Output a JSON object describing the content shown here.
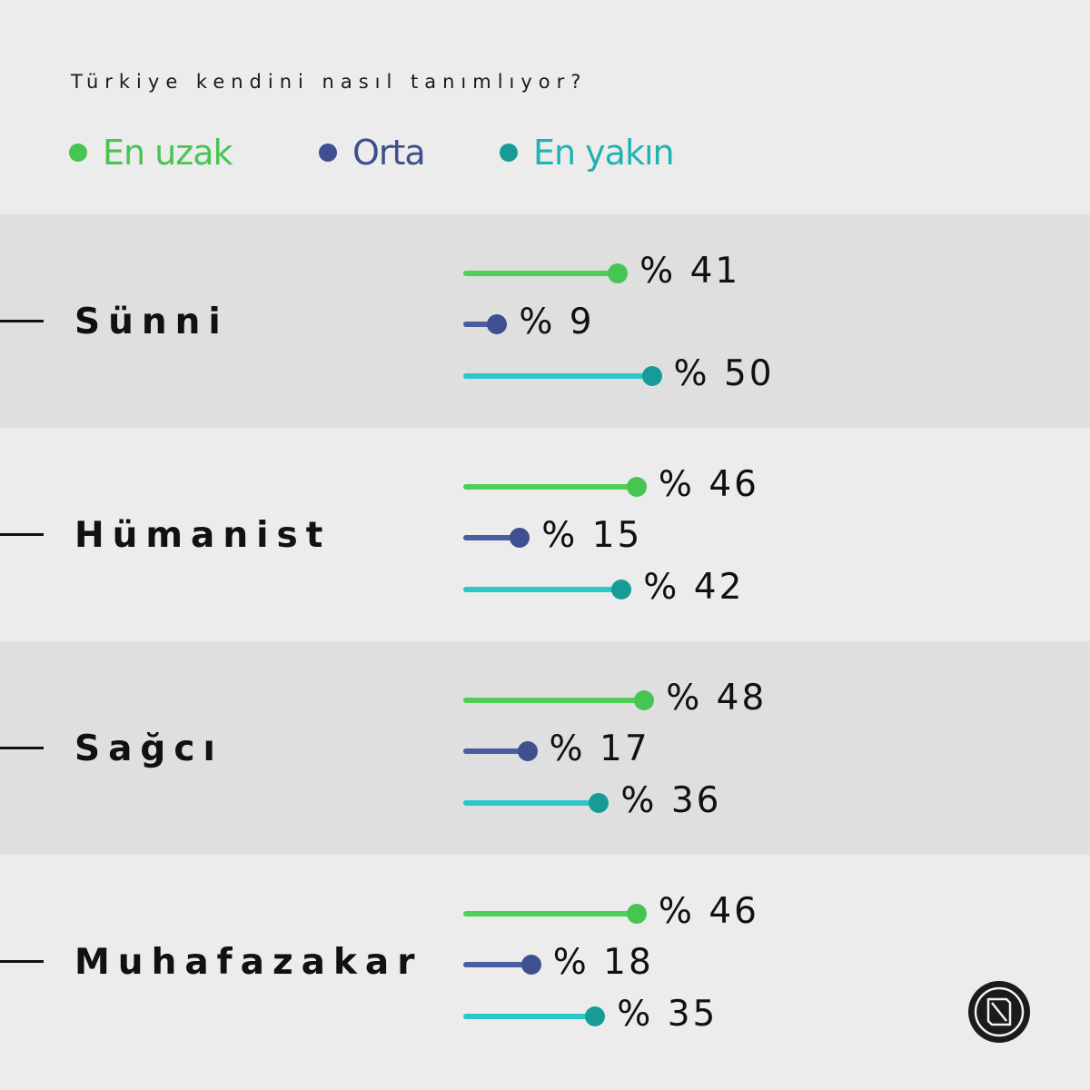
{
  "chart_data": {
    "type": "bar",
    "title": "Türkiye kendini nasıl tanımlıyor?",
    "categories": [
      "Sünni",
      "Hümanist",
      "Sağcı",
      "Muhafazakar"
    ],
    "value_prefix": "% ",
    "series": [
      {
        "name": "En uzak",
        "color": "#47c552",
        "bar_color": "#4fcf57",
        "values": [
          41,
          46,
          48,
          46
        ]
      },
      {
        "name": "Orta",
        "color": "#3f4f8f",
        "bar_color": "#4a5da0",
        "values": [
          9,
          15,
          17,
          18
        ]
      },
      {
        "name": "En yakın",
        "color": "#169c98",
        "bar_color": "#2cc7c7",
        "values": [
          50,
          42,
          36,
          35
        ]
      }
    ],
    "legend_text_colors": [
      "#47c552",
      "#3d4f8c",
      "#20b3b3"
    ],
    "xlim": [
      0,
      100
    ],
    "grid": false,
    "legend_position": "top-left",
    "orientation": "horizontal"
  },
  "logo": {
    "name": "brand-logo"
  }
}
